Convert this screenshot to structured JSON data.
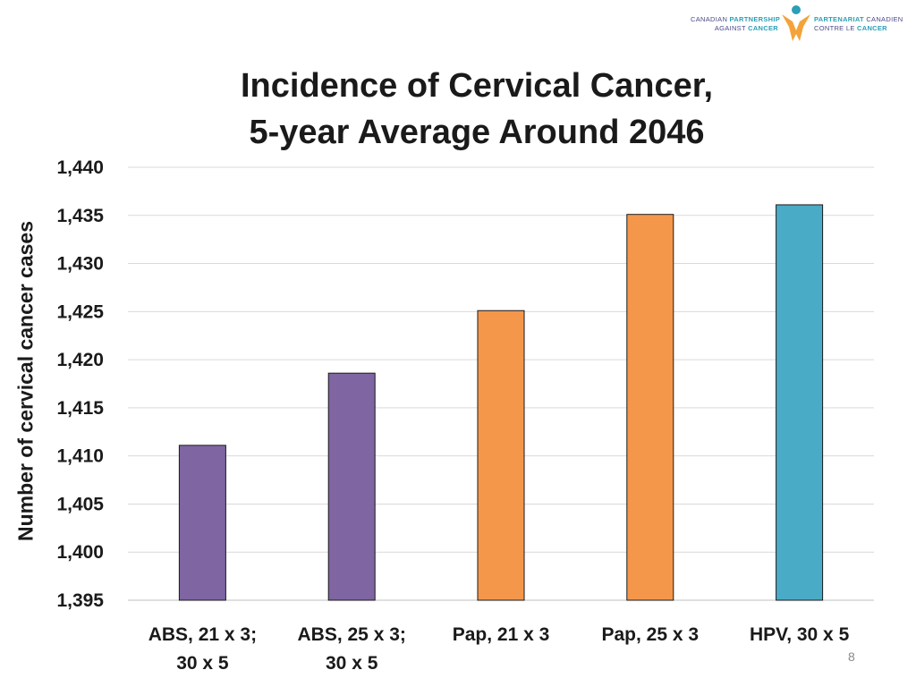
{
  "logo": {
    "left_line1_a": "CANADIAN ",
    "left_line1_b": "PARTNERSHIP",
    "left_line2_a": "AGAINST ",
    "left_line2_b": "CANCER",
    "right_line1_a": "PARTENARIAT",
    "right_line1_b": " CANADIEN",
    "right_line2_a": "CONTRE LE ",
    "right_line2_b": "CANCER"
  },
  "page_number": "8",
  "colors": {
    "purple": "#7f65a2",
    "orange": "#f4974b",
    "blue": "#4aabc7",
    "grid": "#d9d9d9"
  },
  "chart_data": {
    "type": "bar",
    "title_line1": "Incidence of Cervical Cancer,",
    "title_line2": "5-year Average Around 2046",
    "xlabel": "",
    "ylabel": "Number of cervical cancer cases",
    "ylim": [
      1395,
      1440
    ],
    "yticks": [
      1395,
      1400,
      1405,
      1410,
      1415,
      1420,
      1425,
      1430,
      1435,
      1440
    ],
    "ytick_labels": [
      "1,395",
      "1,400",
      "1,405",
      "1,410",
      "1,415",
      "1,420",
      "1,425",
      "1,430",
      "1,435",
      "1,440"
    ],
    "grid": true,
    "categories": [
      [
        "ABS, 21 x 3;",
        "30 x 5"
      ],
      [
        "ABS, 25 x 3;",
        "30 x 5"
      ],
      [
        "Pap, 21 x 3"
      ],
      [
        "Pap, 25 x 3"
      ],
      [
        "HPV, 30 x 5"
      ]
    ],
    "values": [
      1411.1,
      1418.6,
      1425.1,
      1435.1,
      1436.1
    ],
    "bar_colors": [
      "purple",
      "purple",
      "orange",
      "orange",
      "blue"
    ]
  }
}
